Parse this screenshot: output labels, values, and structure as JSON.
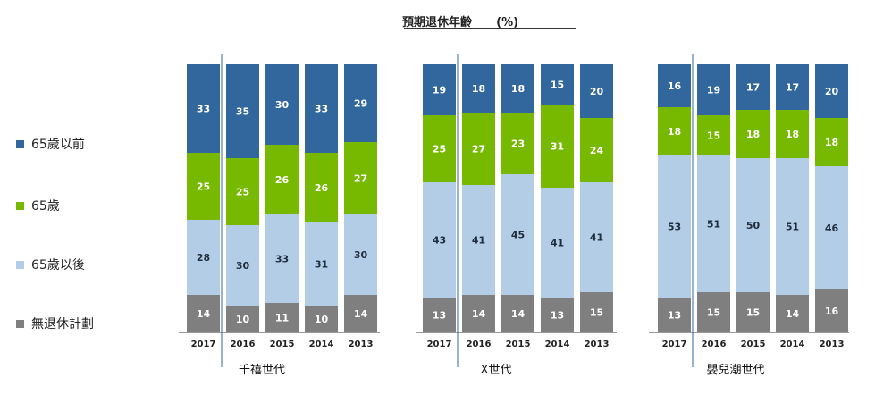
{
  "chart_data": {
    "type": "bar",
    "stacked": true,
    "title": "預期退休年齡",
    "title_unit": "(%)",
    "years": [
      "2017",
      "2016",
      "2015",
      "2014",
      "2013"
    ],
    "groups": [
      {
        "name": "千禧世代",
        "columns": [
          {
            "year": "2017",
            "values": [
              14,
              28,
              25,
              33
            ]
          },
          {
            "year": "2016",
            "values": [
              10,
              30,
              25,
              35
            ]
          },
          {
            "year": "2015",
            "values": [
              11,
              33,
              26,
              30
            ]
          },
          {
            "year": "2014",
            "values": [
              10,
              31,
              26,
              33
            ]
          },
          {
            "year": "2013",
            "values": [
              14,
              30,
              27,
              29
            ]
          }
        ]
      },
      {
        "name": "X世代",
        "columns": [
          {
            "year": "2017",
            "values": [
              13,
              43,
              25,
              19
            ]
          },
          {
            "year": "2016",
            "values": [
              14,
              41,
              27,
              18
            ]
          },
          {
            "year": "2015",
            "values": [
              14,
              45,
              23,
              18
            ]
          },
          {
            "year": "2014",
            "values": [
              13,
              41,
              31,
              15
            ]
          },
          {
            "year": "2013",
            "values": [
              15,
              41,
              24,
              20
            ]
          }
        ]
      },
      {
        "name": "嬰兒潮世代",
        "columns": [
          {
            "year": "2017",
            "values": [
              13,
              53,
              18,
              16
            ]
          },
          {
            "year": "2016",
            "values": [
              15,
              51,
              15,
              19
            ]
          },
          {
            "year": "2015",
            "values": [
              15,
              50,
              18,
              17
            ]
          },
          {
            "year": "2014",
            "values": [
              14,
              51,
              18,
              17
            ]
          },
          {
            "year": "2013",
            "values": [
              16,
              46,
              18,
              20
            ]
          }
        ]
      }
    ],
    "series": [
      {
        "name": "無退休計劃",
        "color": "#7f7f7f",
        "label_color": "#ffffff"
      },
      {
        "name": "65歲以後",
        "color": "#b3cde6",
        "label_color": "#1f2d3d"
      },
      {
        "name": "65歲",
        "color": "#77b800",
        "label_color": "#ffffff"
      },
      {
        "name": "65歲以前",
        "color": "#31679c",
        "label_color": "#ffffff"
      }
    ],
    "legend_order": [
      "65歲以前",
      "65歲",
      "65歲以後",
      "無退休計劃"
    ],
    "legend_position": "left",
    "grid": false
  }
}
